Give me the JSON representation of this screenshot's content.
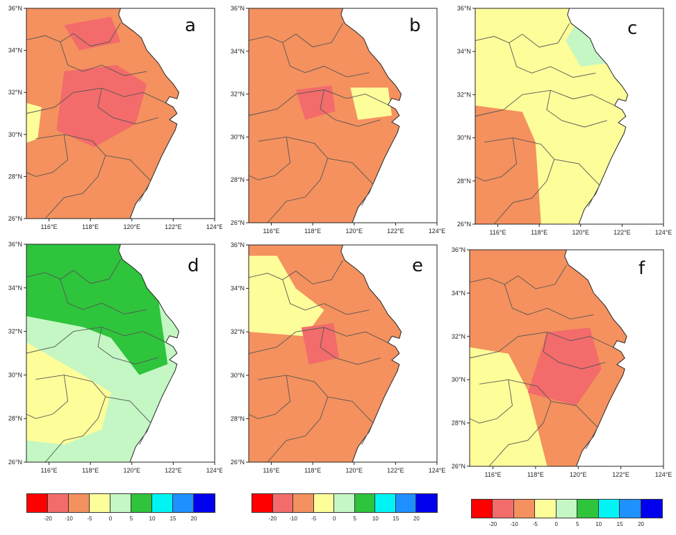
{
  "panels": [
    {
      "letter": "a",
      "lat_labels": [
        "36°N",
        "34°N",
        "32°N",
        "30°N",
        "28°N",
        "26°N"
      ],
      "lon_labels": [
        "116°E",
        "118°E",
        "120°E",
        "122°E",
        "124°E"
      ],
      "base_class": "-10 to -5",
      "patches": [
        {
          "class": "-20 to -10",
          "area": "central Anhui"
        },
        {
          "class": "-20 to -10",
          "area": "northern Jiangsu"
        },
        {
          "class": "-5 to 0",
          "area": "western edge"
        }
      ]
    },
    {
      "letter": "b",
      "lat_labels": [
        "36°N",
        "34°N",
        "32°N",
        "30°N",
        "28°N",
        "26°N"
      ],
      "lon_labels": [
        "116°E",
        "118°E",
        "120°E",
        "122°E",
        "124°E"
      ],
      "base_class": "-10 to -5",
      "patches": [
        {
          "class": "-5 to 0",
          "area": "southern Jiangsu"
        },
        {
          "class": "-20 to -10",
          "area": "central Anhui"
        }
      ]
    },
    {
      "letter": "c",
      "lat_labels": [
        "36°N",
        "34°N",
        "32°N",
        "30°N",
        "28°N",
        "26°N"
      ],
      "lon_labels": [
        "116°E",
        "118°E",
        "120°E",
        "122°E",
        "124°E"
      ],
      "base_class": "-5 to 0",
      "patches": [
        {
          "class": "0 to 5",
          "area": "northern Jiangsu"
        },
        {
          "class": "-10 to -5",
          "area": "southwest"
        }
      ]
    },
    {
      "letter": "d",
      "lat_labels": [
        "36°N",
        "34°N",
        "32°N",
        "30°N",
        "28°N",
        "26°N"
      ],
      "lon_labels": [
        "116°E",
        "118°E",
        "120°E",
        "122°E",
        "124°E"
      ],
      "base_class": "0 to 5",
      "patches": [
        {
          "class": "5 to 10",
          "area": "north"
        },
        {
          "class": "-5 to 0",
          "area": "southwest"
        }
      ]
    },
    {
      "letter": "e",
      "lat_labels": [
        "36°N",
        "34°N",
        "32°N",
        "30°N",
        "28°N",
        "26°N"
      ],
      "lon_labels": [
        "116°E",
        "118°E",
        "120°E",
        "122°E",
        "124°E"
      ],
      "base_class": "-10 to -5",
      "patches": [
        {
          "class": "-5 to 0",
          "area": "northwest"
        },
        {
          "class": "-20 to -10",
          "area": "central"
        }
      ]
    },
    {
      "letter": "f",
      "lat_labels": [
        "36°N",
        "34°N",
        "32°N",
        "30°N",
        "28°N",
        "26°N"
      ],
      "lon_labels": [
        "116°E",
        "118°E",
        "120°E",
        "122°E",
        "124°E"
      ],
      "base_class": "-10 to -5",
      "patches": [
        {
          "class": "-5 to 0",
          "area": "southwest"
        },
        {
          "class": "-20 to -10",
          "area": "east-central"
        }
      ]
    }
  ],
  "colorbar": {
    "colors": [
      "#ff0000",
      "#f36b6b",
      "#f4915e",
      "#fdfd9a",
      "#c4f7c4",
      "#2ec43c",
      "#00f4f4",
      "#1e90ff",
      "#0000ee"
    ],
    "labels": [
      "-20",
      "-10",
      "-5",
      "0",
      "5",
      "10",
      "15",
      "20"
    ]
  },
  "palette": {
    "land_base_classes": {
      "-20 to -10": "#f36b6b",
      "-10 to -5": "#f4915e",
      "-5 to 0": "#fdfd9a",
      "0 to 5": "#c4f7c4",
      "5 to 10": "#2ec43c"
    },
    "sea": "#ffffff"
  }
}
